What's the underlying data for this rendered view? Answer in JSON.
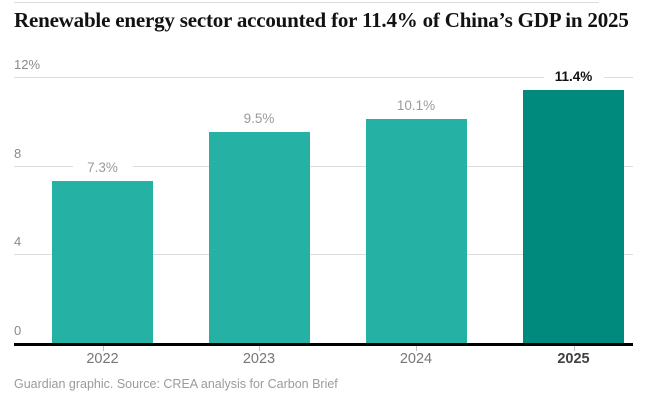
{
  "header": {
    "title": "Renewable energy sector accounted for 11.4% of China’s GDP in 2025"
  },
  "source": {
    "credit": "Guardian graphic. Source: CREA analysis for Carbon Brief"
  },
  "chart_data": {
    "type": "bar",
    "title": "Renewable energy sector accounted for 11.4% of China’s GDP in 2025",
    "categories": [
      "2022",
      "2023",
      "2024",
      "2025"
    ],
    "values": [
      7.3,
      9.5,
      10.1,
      11.4
    ],
    "bar_labels": [
      "7.3%",
      "9.5%",
      "10.1%",
      "11.4%"
    ],
    "highlight_index": 3,
    "xlabel": "",
    "ylabel": "",
    "ylim": [
      0,
      12
    ],
    "yticks": [
      {
        "value": 0,
        "label": "0"
      },
      {
        "value": 4,
        "label": "4"
      },
      {
        "value": 8,
        "label": "8"
      },
      {
        "value": 12,
        "label": "12%"
      }
    ],
    "grid": true,
    "legend": "none",
    "colors": {
      "bar": "#25b2a5",
      "bar_highlight": "#008a7d",
      "value_label": "#9b9b9b",
      "value_label_highlight": "#121212",
      "axis_text": "#8a8a8a",
      "x_axis_text": "#767676",
      "x_axis_text_highlight": "#404040",
      "gridline": "#dcdcdc",
      "axis_line": "#000000"
    }
  }
}
